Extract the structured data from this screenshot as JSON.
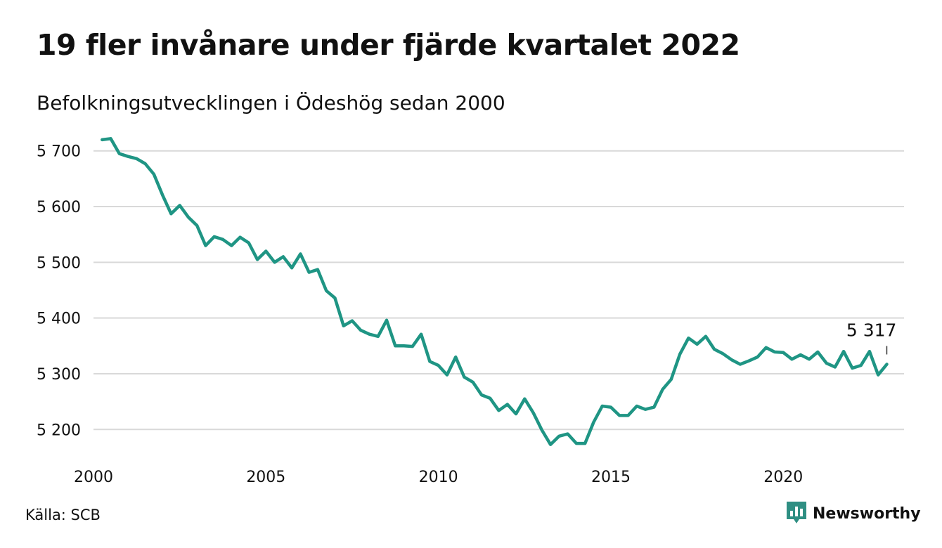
{
  "header": {
    "title": "19 fler invånare under fjärde kvartalet 2022",
    "subtitle": "Befolkningsutvecklingen i Ödeshög sedan 2000"
  },
  "footer": {
    "source": "Källa: SCB",
    "logo_text": "Newsworthy",
    "logo_icon": "chart-speech-bubble-icon"
  },
  "colors": {
    "line": "#1f9584",
    "grid": "#d9d9d9",
    "text": "#111111",
    "logo": "#2f8f83"
  },
  "chart_data": {
    "type": "line",
    "title": "19 fler invånare under fjärde kvartalet 2022",
    "subtitle": "Befolkningsutvecklingen i Ödeshög sedan 2000",
    "xlabel": "",
    "ylabel": "",
    "xlim": [
      2000,
      2023.5
    ],
    "ylim": [
      5160,
      5740
    ],
    "grid": "horizontal",
    "legend": "none",
    "x_ticks": [
      {
        "value": 2000,
        "label": "2000"
      },
      {
        "value": 2005,
        "label": "2005"
      },
      {
        "value": 2010,
        "label": "2010"
      },
      {
        "value": 2015,
        "label": "2015"
      },
      {
        "value": 2020,
        "label": "2020"
      }
    ],
    "y_ticks": [
      {
        "value": 5200,
        "label": "5 200"
      },
      {
        "value": 5300,
        "label": "5 300"
      },
      {
        "value": 5400,
        "label": "5 400"
      },
      {
        "value": 5500,
        "label": "5 500"
      },
      {
        "value": 5600,
        "label": "5 600"
      },
      {
        "value": 5700,
        "label": "5 700"
      }
    ],
    "end_label": "5 317",
    "series": [
      {
        "x_start": 2000.25,
        "x_step": 0.25,
        "values": [
          5720,
          5722,
          5695,
          5690,
          5686,
          5677,
          5658,
          5621,
          5587,
          5602,
          5581,
          5566,
          5530,
          5546,
          5541,
          5530,
          5545,
          5535,
          5505,
          5520,
          5500,
          5510,
          5490,
          5515,
          5482,
          5487,
          5449,
          5436,
          5386,
          5395,
          5378,
          5371,
          5367,
          5396,
          5350,
          5350,
          5349,
          5371,
          5322,
          5315,
          5298,
          5330,
          5294,
          5285,
          5262,
          5256,
          5234,
          5245,
          5228,
          5255,
          5230,
          5199,
          5173,
          5188,
          5192,
          5175,
          5175,
          5213,
          5242,
          5240,
          5225,
          5225,
          5242,
          5236,
          5240,
          5272,
          5290,
          5335,
          5364,
          5353,
          5367,
          5344,
          5336,
          5325,
          5317,
          5323,
          5330,
          5347,
          5339,
          5338,
          5326,
          5334,
          5326,
          5339,
          5319,
          5312,
          5340,
          5310,
          5315,
          5340,
          5298,
          5317
        ]
      }
    ]
  }
}
